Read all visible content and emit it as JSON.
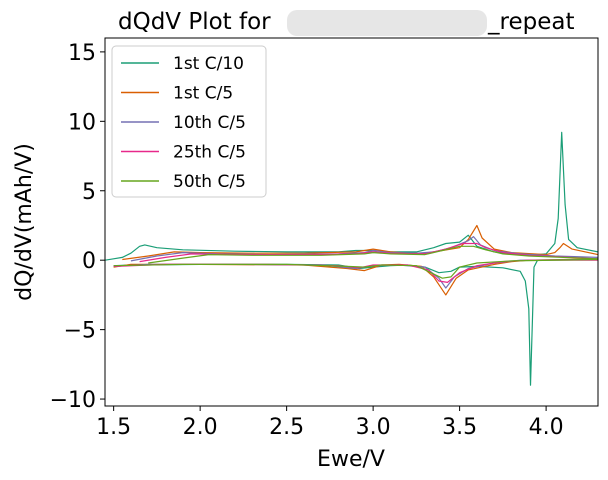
{
  "chart_data": {
    "type": "line",
    "title_left": "dQdV Plot for",
    "title_right": "_repeat",
    "xlabel": "Ewe/V",
    "ylabel": "dQ/dV(mAh/V)",
    "xlim": [
      1.45,
      4.3
    ],
    "ylim": [
      -10.5,
      16.0
    ],
    "xticks": [
      1.5,
      2.0,
      2.5,
      3.0,
      3.5,
      4.0
    ],
    "xtick_labels": [
      "1.5",
      "2.0",
      "2.5",
      "3.0",
      "3.5",
      "4.0"
    ],
    "yticks": [
      15,
      10,
      5,
      0,
      -5,
      -10
    ],
    "ytick_labels": [
      "15",
      "10",
      "5",
      "0",
      "−5",
      "−10"
    ],
    "legend_position": "top-left",
    "series": [
      {
        "name": "1st C/10",
        "color": "#1b9e77",
        "charge": [
          [
            1.45,
            0.0
          ],
          [
            1.5,
            0.1
          ],
          [
            1.55,
            0.2
          ],
          [
            1.6,
            0.5
          ],
          [
            1.65,
            1.0
          ],
          [
            1.68,
            1.1
          ],
          [
            1.75,
            0.9
          ],
          [
            1.9,
            0.75
          ],
          [
            2.2,
            0.65
          ],
          [
            2.5,
            0.6
          ],
          [
            2.8,
            0.6
          ],
          [
            2.9,
            0.7
          ],
          [
            3.0,
            0.7
          ],
          [
            3.1,
            0.6
          ],
          [
            3.25,
            0.6
          ],
          [
            3.35,
            0.9
          ],
          [
            3.42,
            1.2
          ],
          [
            3.5,
            1.3
          ],
          [
            3.55,
            1.8
          ],
          [
            3.6,
            1.0
          ],
          [
            3.7,
            0.6
          ],
          [
            3.8,
            0.45
          ],
          [
            3.95,
            0.4
          ],
          [
            4.0,
            0.45
          ],
          [
            4.05,
            1.2
          ],
          [
            4.07,
            3.0
          ],
          [
            4.09,
            9.2
          ],
          [
            4.11,
            4.0
          ],
          [
            4.13,
            1.5
          ],
          [
            4.18,
            0.9
          ],
          [
            4.3,
            0.6
          ]
        ],
        "discharge": [
          [
            1.5,
            -0.4
          ],
          [
            1.6,
            -0.35
          ],
          [
            2.0,
            -0.3
          ],
          [
            2.5,
            -0.3
          ],
          [
            2.8,
            -0.35
          ],
          [
            2.92,
            -0.6
          ],
          [
            3.0,
            -0.5
          ],
          [
            3.1,
            -0.4
          ],
          [
            3.2,
            -0.35
          ],
          [
            3.3,
            -0.5
          ],
          [
            3.38,
            -0.9
          ],
          [
            3.45,
            -0.8
          ],
          [
            3.5,
            -0.5
          ],
          [
            3.6,
            -0.45
          ],
          [
            3.75,
            -0.55
          ],
          [
            3.85,
            -0.8
          ],
          [
            3.88,
            -1.5
          ],
          [
            3.9,
            -3.5
          ],
          [
            3.91,
            -9.0
          ],
          [
            3.93,
            -0.5
          ],
          [
            3.95,
            0.0
          ],
          [
            4.3,
            0.05
          ]
        ]
      },
      {
        "name": "1st C/5",
        "color": "#d95f02",
        "charge": [
          [
            1.55,
            0.05
          ],
          [
            1.7,
            0.3
          ],
          [
            1.85,
            0.6
          ],
          [
            2.0,
            0.55
          ],
          [
            2.3,
            0.5
          ],
          [
            2.6,
            0.5
          ],
          [
            2.9,
            0.6
          ],
          [
            3.0,
            0.8
          ],
          [
            3.1,
            0.6
          ],
          [
            3.2,
            0.5
          ],
          [
            3.3,
            0.5
          ],
          [
            3.4,
            0.7
          ],
          [
            3.5,
            0.9
          ],
          [
            3.55,
            1.5
          ],
          [
            3.6,
            2.5
          ],
          [
            3.63,
            1.6
          ],
          [
            3.7,
            0.8
          ],
          [
            3.8,
            0.55
          ],
          [
            4.0,
            0.4
          ],
          [
            4.05,
            0.55
          ],
          [
            4.08,
            0.9
          ],
          [
            4.1,
            1.2
          ],
          [
            4.15,
            0.8
          ],
          [
            4.3,
            0.4
          ]
        ],
        "discharge": [
          [
            1.5,
            -0.5
          ],
          [
            1.6,
            -0.3
          ],
          [
            2.0,
            -0.3
          ],
          [
            2.6,
            -0.35
          ],
          [
            2.85,
            -0.6
          ],
          [
            2.95,
            -0.75
          ],
          [
            3.05,
            -0.35
          ],
          [
            3.15,
            -0.3
          ],
          [
            3.28,
            -0.45
          ],
          [
            3.35,
            -1.2
          ],
          [
            3.42,
            -2.5
          ],
          [
            3.48,
            -1.3
          ],
          [
            3.55,
            -0.7
          ],
          [
            3.7,
            -0.3
          ],
          [
            3.8,
            -0.1
          ],
          [
            3.9,
            0.0
          ],
          [
            4.3,
            0.1
          ]
        ]
      },
      {
        "name": "10th C/5",
        "color": "#7570b3",
        "charge": [
          [
            1.6,
            -0.05
          ],
          [
            1.75,
            0.3
          ],
          [
            1.9,
            0.55
          ],
          [
            2.1,
            0.45
          ],
          [
            2.4,
            0.4
          ],
          [
            2.8,
            0.45
          ],
          [
            2.95,
            0.55
          ],
          [
            3.0,
            0.7
          ],
          [
            3.1,
            0.55
          ],
          [
            3.25,
            0.5
          ],
          [
            3.35,
            0.6
          ],
          [
            3.45,
            0.9
          ],
          [
            3.55,
            1.4
          ],
          [
            3.58,
            1.7
          ],
          [
            3.62,
            1.1
          ],
          [
            3.7,
            0.7
          ],
          [
            3.85,
            0.45
          ],
          [
            4.05,
            0.3
          ],
          [
            4.3,
            0.2
          ]
        ],
        "discharge": [
          [
            1.5,
            -0.45
          ],
          [
            1.7,
            -0.3
          ],
          [
            2.2,
            -0.3
          ],
          [
            2.7,
            -0.35
          ],
          [
            2.9,
            -0.6
          ],
          [
            3.0,
            -0.4
          ],
          [
            3.15,
            -0.35
          ],
          [
            3.3,
            -0.5
          ],
          [
            3.38,
            -1.3
          ],
          [
            3.42,
            -2.0
          ],
          [
            3.47,
            -1.2
          ],
          [
            3.55,
            -0.6
          ],
          [
            3.7,
            -0.2
          ],
          [
            3.85,
            0.0
          ],
          [
            4.3,
            0.05
          ]
        ]
      },
      {
        "name": "25th C/5",
        "color": "#e7298a",
        "charge": [
          [
            1.65,
            -0.1
          ],
          [
            1.8,
            0.2
          ],
          [
            1.95,
            0.45
          ],
          [
            2.2,
            0.4
          ],
          [
            2.6,
            0.4
          ],
          [
            2.9,
            0.45
          ],
          [
            3.0,
            0.6
          ],
          [
            3.1,
            0.5
          ],
          [
            3.3,
            0.45
          ],
          [
            3.42,
            0.8
          ],
          [
            3.52,
            1.2
          ],
          [
            3.6,
            1.2
          ],
          [
            3.65,
            0.9
          ],
          [
            3.75,
            0.55
          ],
          [
            3.9,
            0.35
          ],
          [
            4.3,
            0.1
          ]
        ],
        "discharge": [
          [
            1.5,
            -0.45
          ],
          [
            1.8,
            -0.3
          ],
          [
            2.4,
            -0.3
          ],
          [
            2.8,
            -0.4
          ],
          [
            2.92,
            -0.55
          ],
          [
            3.0,
            -0.35
          ],
          [
            3.2,
            -0.35
          ],
          [
            3.32,
            -0.7
          ],
          [
            3.38,
            -1.5
          ],
          [
            3.43,
            -1.6
          ],
          [
            3.5,
            -0.9
          ],
          [
            3.6,
            -0.4
          ],
          [
            3.75,
            -0.1
          ],
          [
            3.9,
            0.0
          ],
          [
            4.3,
            0.0
          ]
        ]
      },
      {
        "name": "50th C/5",
        "color": "#66a61e",
        "charge": [
          [
            1.7,
            -0.2
          ],
          [
            1.9,
            0.15
          ],
          [
            2.05,
            0.4
          ],
          [
            2.3,
            0.35
          ],
          [
            2.7,
            0.35
          ],
          [
            2.95,
            0.45
          ],
          [
            3.0,
            0.55
          ],
          [
            3.1,
            0.45
          ],
          [
            3.3,
            0.4
          ],
          [
            3.4,
            0.7
          ],
          [
            3.5,
            1.0
          ],
          [
            3.58,
            1.0
          ],
          [
            3.65,
            0.75
          ],
          [
            3.75,
            0.45
          ],
          [
            3.9,
            0.3
          ],
          [
            4.3,
            0.1
          ]
        ],
        "discharge": [
          [
            1.5,
            -0.4
          ],
          [
            1.9,
            -0.3
          ],
          [
            2.5,
            -0.3
          ],
          [
            2.85,
            -0.45
          ],
          [
            2.95,
            -0.5
          ],
          [
            3.05,
            -0.35
          ],
          [
            3.25,
            -0.4
          ],
          [
            3.35,
            -1.0
          ],
          [
            3.4,
            -1.3
          ],
          [
            3.45,
            -1.2
          ],
          [
            3.5,
            -0.5
          ],
          [
            3.6,
            -0.2
          ],
          [
            3.8,
            -0.05
          ],
          [
            4.3,
            0.05
          ]
        ]
      }
    ]
  }
}
